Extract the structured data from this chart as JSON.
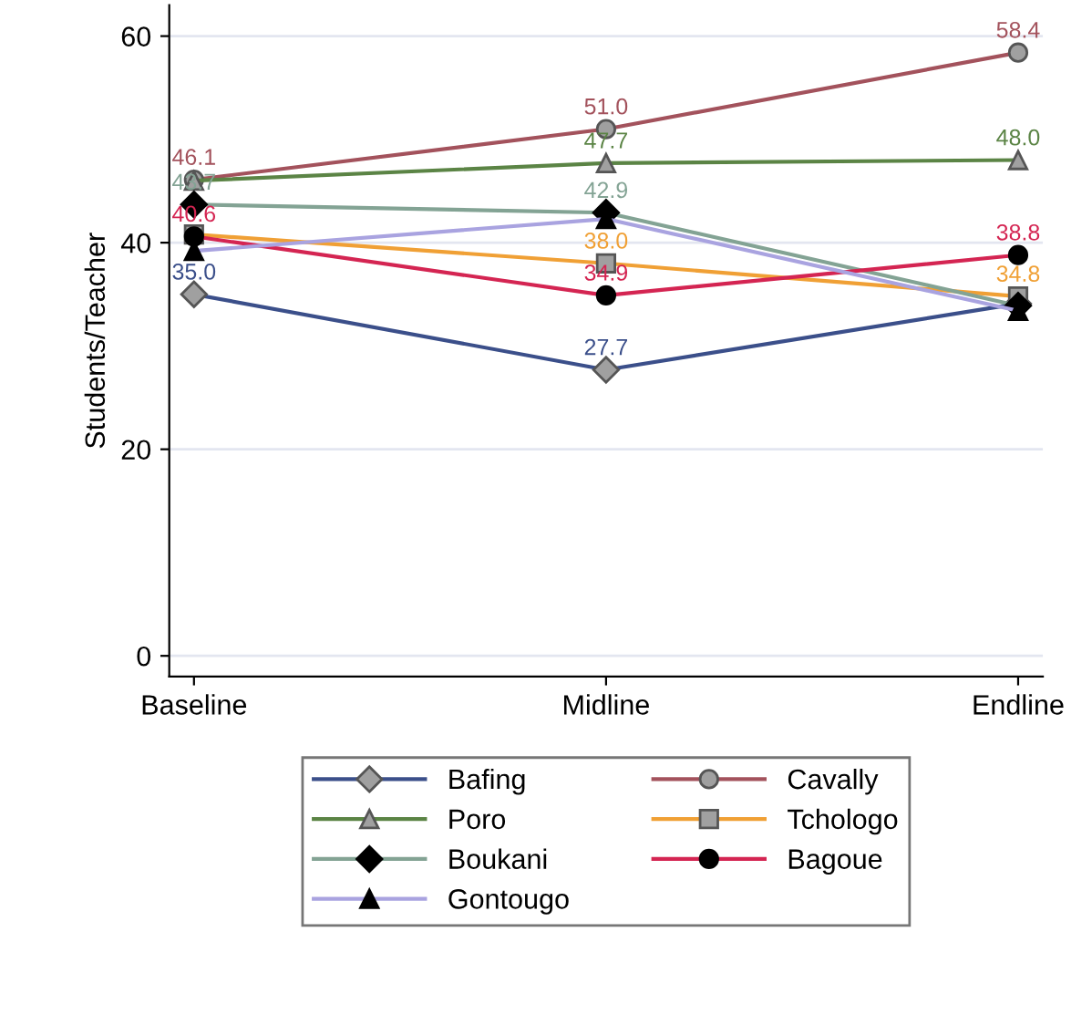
{
  "chart_data": {
    "type": "line",
    "ylabel": "Students/Teacher",
    "categories": [
      "Baseline",
      "Midline",
      "Endline"
    ],
    "series": [
      {
        "name": "Bafing",
        "color": "#3b4f8a",
        "marker": "diamond",
        "values": [
          35.0,
          27.7,
          34.1
        ],
        "value_labels": [
          "35.0",
          "27.7",
          null
        ]
      },
      {
        "name": "Cavally",
        "color": "#a3525c",
        "marker": "circle",
        "values": [
          46.1,
          51.0,
          58.4
        ],
        "value_labels": [
          "46.1",
          "51.0",
          "58.4"
        ]
      },
      {
        "name": "Poro",
        "color": "#5b8445",
        "marker": "triangle",
        "values": [
          46.0,
          47.7,
          48.0
        ],
        "value_labels": [
          null,
          "47.7",
          "48.0"
        ]
      },
      {
        "name": "Tchologo",
        "color": "#f0a035",
        "marker": "square",
        "values": [
          40.8,
          38.0,
          34.8
        ],
        "value_labels": [
          null,
          "38.0",
          "34.8"
        ]
      },
      {
        "name": "Boukani",
        "color": "#83a394",
        "marker": "diamond",
        "values": [
          43.7,
          42.9,
          33.9
        ],
        "value_labels": [
          "43.7",
          "42.9",
          null
        ]
      },
      {
        "name": "Bagoue",
        "color": "#d42552",
        "marker": "circle",
        "values": [
          40.6,
          34.9,
          38.8
        ],
        "value_labels": [
          "40.6",
          "34.9",
          "38.8"
        ]
      },
      {
        "name": "Gontougo",
        "color": "#a9a3e0",
        "marker": "triangle",
        "values": [
          39.2,
          42.3,
          33.4
        ],
        "value_labels": [
          null,
          null,
          null
        ]
      }
    ],
    "ylim": [
      -2,
      63
    ],
    "yticks": [
      0,
      20,
      40,
      60
    ],
    "grid": "y",
    "legend": "bottom"
  }
}
